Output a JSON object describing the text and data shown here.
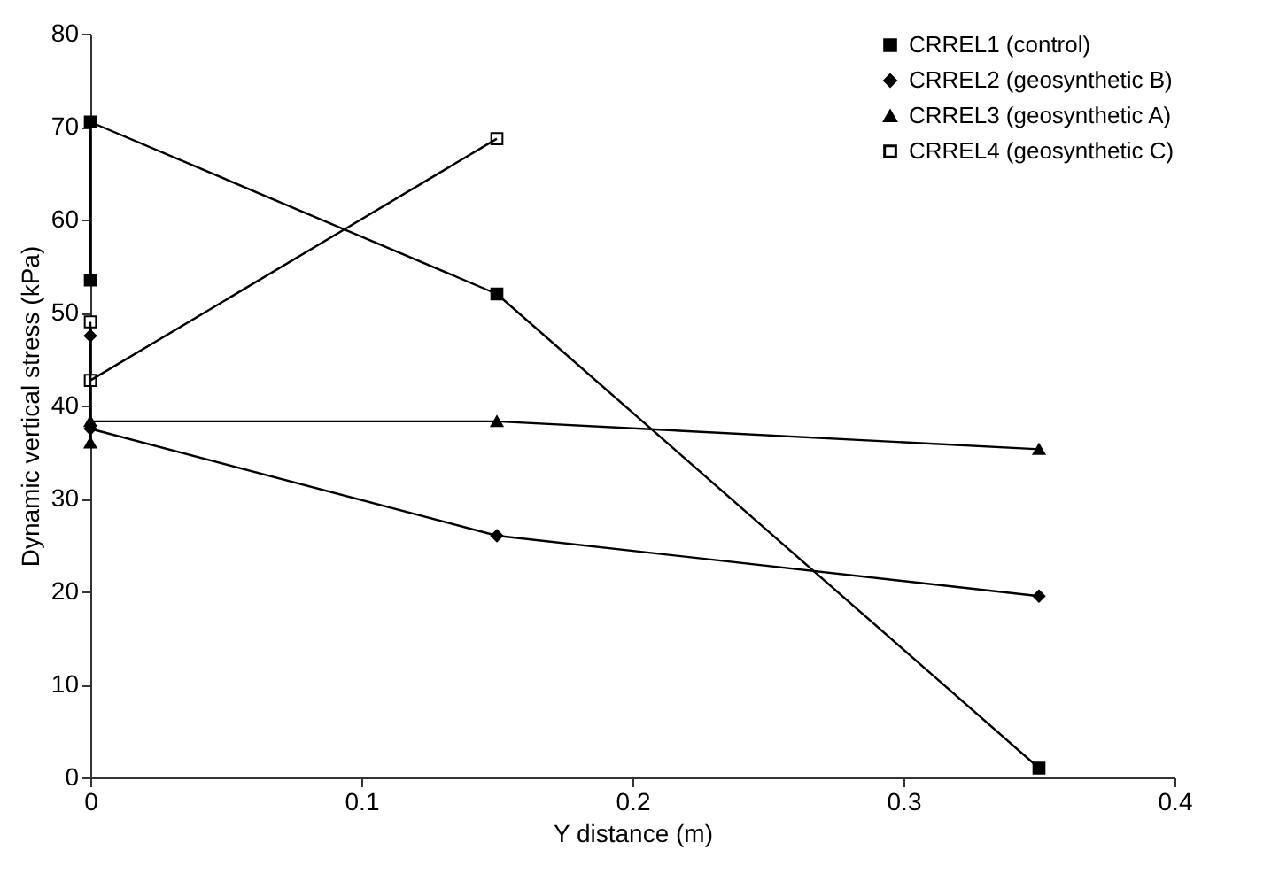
{
  "chart_data": {
    "type": "line",
    "xlabel": "Y distance (m)",
    "ylabel": "Dynamic vertical stress (kPa)",
    "xlim": [
      0,
      0.4
    ],
    "xticks": [
      0,
      0.1,
      0.2,
      0.3,
      0.4
    ],
    "ylim": [
      0,
      80
    ],
    "yticks": [
      0,
      10,
      20,
      30,
      40,
      50,
      60,
      70,
      80
    ],
    "grid": false,
    "legend": "top right",
    "line_style": "solid",
    "series": [
      {
        "name": "CRREL1 (control)",
        "color": "#000000",
        "marker": "square",
        "x": [
          0,
          0,
          0.15,
          0.35
        ],
        "values": [
          53.5,
          70.5,
          52,
          1
        ]
      },
      {
        "name": "CRREL2 (geosynthetic B)",
        "color": "#000000",
        "marker": "diamond",
        "x": [
          0,
          0,
          0.15,
          0.35
        ],
        "values": [
          47.5,
          37.5,
          26,
          19.5
        ]
      },
      {
        "name": "CRREL3 (geosynthetic A)",
        "color": "#000000",
        "marker": "triangle",
        "x": [
          0,
          0,
          0.15,
          0.35
        ],
        "values": [
          36,
          38.3,
          38.3,
          35.3
        ]
      },
      {
        "name": "CRREL4 (geosynthetic C)",
        "color": "#000000",
        "marker": "square",
        "x": [
          0,
          0,
          0.15
        ],
        "values": [
          49,
          42.7,
          68.7
        ]
      }
    ]
  }
}
